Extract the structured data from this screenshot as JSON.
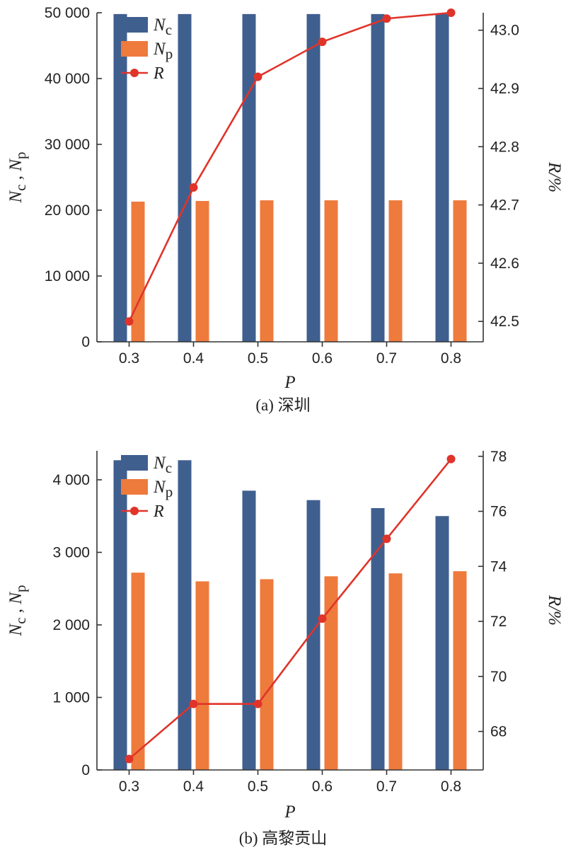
{
  "colors": {
    "nc": "#3f5f8f",
    "np": "#ee7a3c",
    "r": "#e0342a",
    "axis": "#333333"
  },
  "chart_data": [
    {
      "type": "bar",
      "caption": "(a) 深圳",
      "xlabel": "P",
      "ylabel_left": "Nc , Np",
      "ylabel_right": "R/%",
      "categories": [
        "0.3",
        "0.4",
        "0.5",
        "0.6",
        "0.7",
        "0.8"
      ],
      "yticks_left": [
        "0",
        "10 000",
        "20 000",
        "30 000",
        "40 000",
        "50 000"
      ],
      "yticks_right": [
        "42.5",
        "42.6",
        "42.7",
        "42.8",
        "42.9",
        "43.0"
      ],
      "ylim_left": [
        0,
        50000
      ],
      "ylim_right": [
        42.465,
        43.03
      ],
      "legend_position": "top-left",
      "series": [
        {
          "name": "Nc",
          "kind": "bar",
          "axis": "left",
          "values": [
            49800,
            49800,
            49800,
            49800,
            49800,
            49800
          ]
        },
        {
          "name": "Np",
          "kind": "bar",
          "axis": "left",
          "values": [
            21300,
            21400,
            21500,
            21500,
            21500,
            21500
          ]
        },
        {
          "name": "R",
          "kind": "line",
          "axis": "right",
          "values": [
            42.5,
            42.73,
            42.92,
            42.98,
            43.02,
            43.03
          ]
        }
      ]
    },
    {
      "type": "bar",
      "caption": "(b) 高黎贡山",
      "xlabel": "P",
      "ylabel_left": "Nc , Np",
      "ylabel_right": "R/%",
      "categories": [
        "0.3",
        "0.4",
        "0.5",
        "0.6",
        "0.7",
        "0.8"
      ],
      "yticks_left": [
        "0",
        "1 000",
        "2 000",
        "3 000",
        "4 000"
      ],
      "yticks_right": [
        "68",
        "70",
        "72",
        "74",
        "76",
        "78"
      ],
      "ylim_left": [
        0,
        4400
      ],
      "ylim_right": [
        66.6,
        78.2
      ],
      "legend_position": "top-left",
      "series": [
        {
          "name": "Nc",
          "kind": "bar",
          "axis": "left",
          "values": [
            4270,
            4270,
            3850,
            3720,
            3610,
            3500
          ]
        },
        {
          "name": "Np",
          "kind": "bar",
          "axis": "left",
          "values": [
            2720,
            2600,
            2630,
            2670,
            2710,
            2740
          ]
        },
        {
          "name": "R",
          "kind": "line",
          "axis": "right",
          "values": [
            67.0,
            69.0,
            69.0,
            72.1,
            75.0,
            77.9
          ]
        }
      ]
    }
  ]
}
